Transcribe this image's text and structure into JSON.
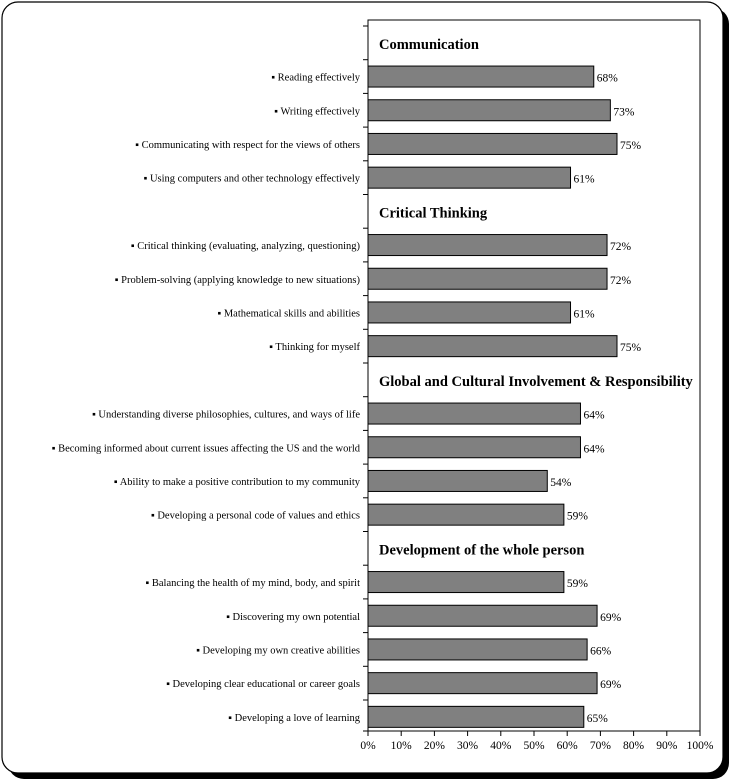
{
  "chart_data": {
    "type": "bar",
    "orientation": "horizontal",
    "xlim": [
      0,
      100
    ],
    "x_ticks": [
      "0%",
      "10%",
      "20%",
      "30%",
      "40%",
      "50%",
      "60%",
      "70%",
      "80%",
      "90%",
      "100%"
    ],
    "grid": false,
    "legend": "none",
    "bar_color": "#808080",
    "bullet": "▪",
    "groups": [
      {
        "title": "Communication",
        "items": [
          {
            "label": "Reading effectively",
            "value": 68,
            "value_label": "68%"
          },
          {
            "label": "Writing effectively",
            "value": 73,
            "value_label": "73%"
          },
          {
            "label": "Communicating with respect for the views of others",
            "value": 75,
            "value_label": "75%"
          },
          {
            "label": "Using computers and other technology effectively",
            "value": 61,
            "value_label": "61%"
          }
        ]
      },
      {
        "title": "Critical Thinking",
        "items": [
          {
            "label": "Critical thinking (evaluating, analyzing, questioning)",
            "value": 72,
            "value_label": "72%"
          },
          {
            "label": "Problem-solving (applying knowledge to new situations)",
            "value": 72,
            "value_label": "72%"
          },
          {
            "label": "Mathematical skills and abilities",
            "value": 61,
            "value_label": "61%"
          },
          {
            "label": "Thinking for myself",
            "value": 75,
            "value_label": "75%"
          }
        ]
      },
      {
        "title": "Global and Cultural Involvement & Responsibility",
        "items": [
          {
            "label": "Understanding diverse philosophies, cultures, and ways of life",
            "value": 64,
            "value_label": "64%"
          },
          {
            "label": "Becoming informed about current issues affecting the US and the world",
            "value": 64,
            "value_label": "64%"
          },
          {
            "label": "Ability to make a positive contribution to  my community",
            "value": 54,
            "value_label": "54%"
          },
          {
            "label": "Developing a personal code of values and ethics",
            "value": 59,
            "value_label": "59%"
          }
        ]
      },
      {
        "title": "Development of the whole person",
        "items": [
          {
            "label": "Balancing the health of my mind, body, and spirit",
            "value": 59,
            "value_label": "59%"
          },
          {
            "label": "Discovering my own potential",
            "value": 69,
            "value_label": "69%"
          },
          {
            "label": "Developing my own creative abilities",
            "value": 66,
            "value_label": "66%"
          },
          {
            "label": "Developing clear educational or career goals",
            "value": 69,
            "value_label": "69%"
          },
          {
            "label": "Developing a love of learning",
            "value": 65,
            "value_label": "65%"
          }
        ]
      }
    ]
  }
}
